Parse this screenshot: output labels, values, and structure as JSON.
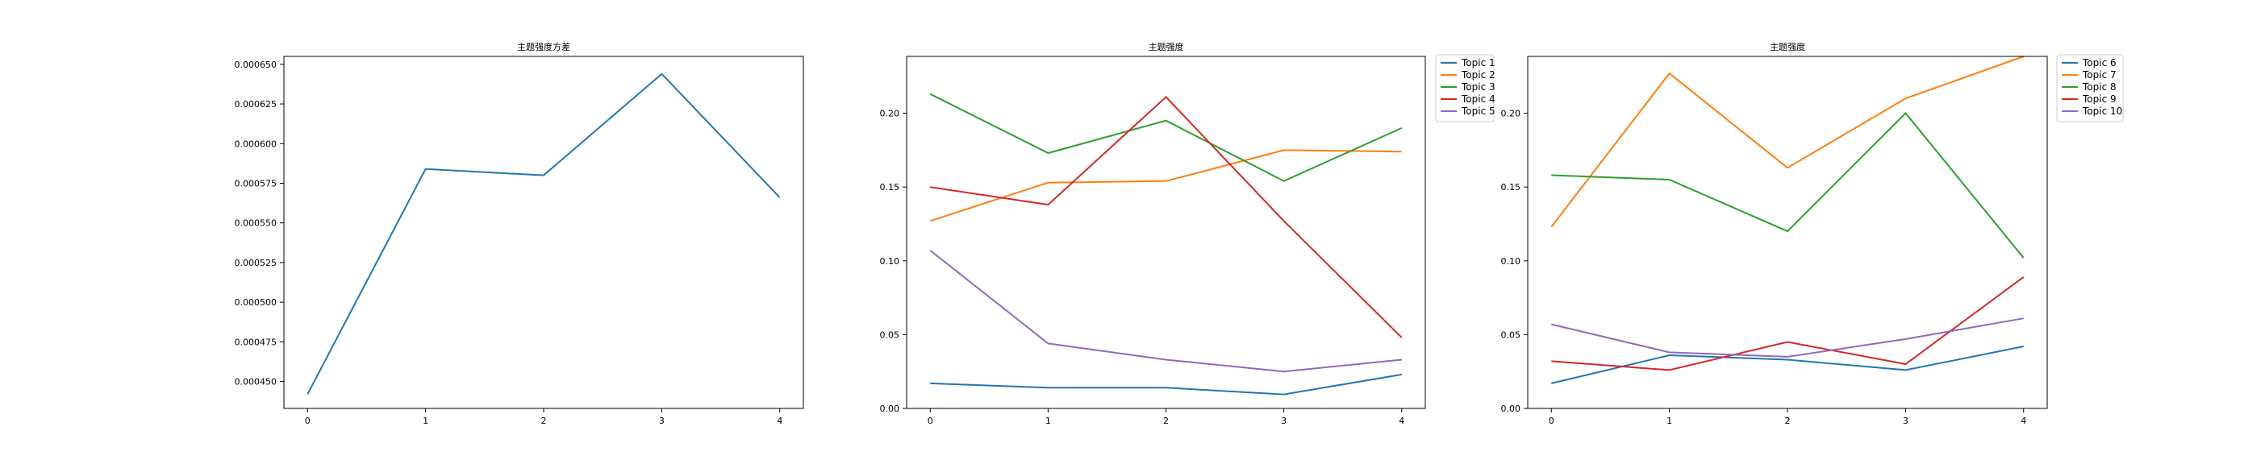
{
  "figure": {
    "background": "#ffffff",
    "axis_color": "#000000",
    "legend_border": "#cccccc"
  },
  "chart_data": [
    {
      "type": "line",
      "title": "主题强度方差",
      "xlabel": "",
      "ylabel": "",
      "x": [
        0,
        1,
        2,
        3,
        4
      ],
      "xticks": [
        "0",
        "1",
        "2",
        "3",
        "4"
      ],
      "xlim": [
        -0.2,
        4.2
      ],
      "ylim": [
        0.000433,
        0.000655
      ],
      "yticks": [
        "0.000450",
        "0.000475",
        "0.000500",
        "0.000525",
        "0.000550",
        "0.000575",
        "0.000600",
        "0.000625",
        "0.000650"
      ],
      "ytick_values": [
        0.00045,
        0.000475,
        0.0005,
        0.000525,
        0.00055,
        0.000575,
        0.0006,
        0.000625,
        0.00065
      ],
      "legend": "none",
      "grid": false,
      "series": [
        {
          "color": "#1f77b4",
          "values": [
            0.000442,
            0.000584,
            0.00058,
            0.000644,
            0.000566
          ]
        }
      ]
    },
    {
      "type": "line",
      "title": "主题强度",
      "xlabel": "",
      "ylabel": "",
      "x": [
        0,
        1,
        2,
        3,
        4
      ],
      "xticks": [
        "0",
        "1",
        "2",
        "3",
        "4"
      ],
      "xlim": [
        -0.2,
        4.2
      ],
      "ylim": [
        0.0,
        0.2385
      ],
      "yticks": [
        "0.00",
        "0.05",
        "0.10",
        "0.15",
        "0.20"
      ],
      "ytick_values": [
        0.0,
        0.05,
        0.1,
        0.15,
        0.2
      ],
      "legend": "outside-top-right",
      "grid": false,
      "series": [
        {
          "name": "Topic 1",
          "color": "#1f77b4",
          "values": [
            0.017,
            0.014,
            0.014,
            0.0095,
            0.023
          ]
        },
        {
          "name": "Topic 2",
          "color": "#ff7f0e",
          "values": [
            0.127,
            0.153,
            0.154,
            0.175,
            0.174
          ]
        },
        {
          "name": "Topic 3",
          "color": "#2ca02c",
          "values": [
            0.213,
            0.173,
            0.195,
            0.154,
            0.19
          ]
        },
        {
          "name": "Topic 4",
          "color": "#d62728",
          "values": [
            0.15,
            0.138,
            0.211,
            0.127,
            0.048
          ]
        },
        {
          "name": "Topic 5",
          "color": "#9467bd",
          "values": [
            0.107,
            0.044,
            0.033,
            0.025,
            0.033
          ]
        }
      ]
    },
    {
      "type": "line",
      "title": "主题强度",
      "xlabel": "",
      "ylabel": "",
      "x": [
        0,
        1,
        2,
        3,
        4
      ],
      "xticks": [
        "0",
        "1",
        "2",
        "3",
        "4"
      ],
      "xlim": [
        -0.2,
        4.2
      ],
      "ylim": [
        0.0,
        0.2385
      ],
      "yticks": [
        "0.00",
        "0.05",
        "0.10",
        "0.15",
        "0.20"
      ],
      "ytick_values": [
        0.0,
        0.05,
        0.1,
        0.15,
        0.2
      ],
      "legend": "outside-top-right",
      "grid": false,
      "series": [
        {
          "name": "Topic 6",
          "color": "#1f77b4",
          "values": [
            0.017,
            0.036,
            0.033,
            0.026,
            0.042
          ]
        },
        {
          "name": "Topic 7",
          "color": "#ff7f0e",
          "values": [
            0.123,
            0.227,
            0.163,
            0.21,
            0.2385
          ]
        },
        {
          "name": "Topic 8",
          "color": "#2ca02c",
          "values": [
            0.158,
            0.155,
            0.12,
            0.2,
            0.102
          ]
        },
        {
          "name": "Topic 9",
          "color": "#d62728",
          "values": [
            0.032,
            0.026,
            0.045,
            0.03,
            0.089
          ]
        },
        {
          "name": "Topic 10",
          "color": "#9467bd",
          "values": [
            0.057,
            0.038,
            0.035,
            0.047,
            0.061
          ]
        }
      ]
    }
  ]
}
